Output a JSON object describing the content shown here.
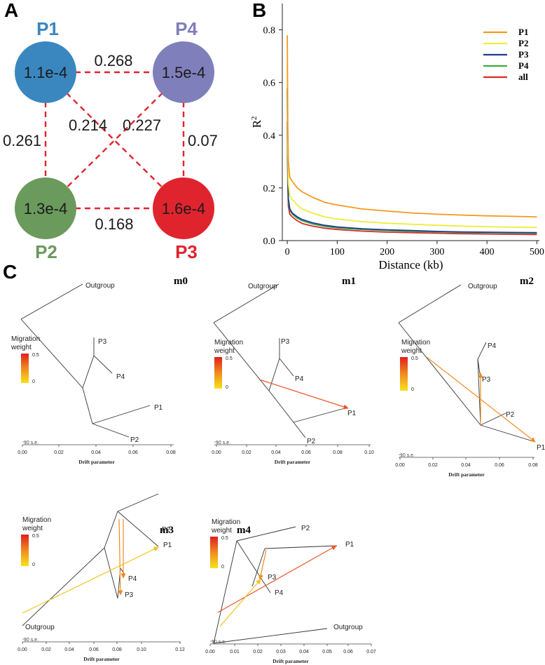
{
  "panels": {
    "a": "A",
    "b": "B",
    "c": "C"
  },
  "populations": [
    {
      "name": "P1",
      "value": "1.1e-4",
      "color": "#3a87c0"
    },
    {
      "name": "P4",
      "value": "1.5e-4",
      "color": "#7f7fbb"
    },
    {
      "name": "P2",
      "value": "1.3e-4",
      "color": "#6a9a5c"
    },
    {
      "name": "P3",
      "value": "1.6e-4",
      "color": "#e0242e"
    }
  ],
  "fst_edges": [
    {
      "from": "P1",
      "to": "P4",
      "label": "0.268"
    },
    {
      "from": "P1",
      "to": "P2",
      "label": "0.261"
    },
    {
      "from": "P1",
      "to": "P3",
      "label": "0.214"
    },
    {
      "from": "P4",
      "to": "P2",
      "label": "0.227"
    },
    {
      "from": "P4",
      "to": "P3",
      "label": "0.07"
    },
    {
      "from": "P2",
      "to": "P3",
      "label": "0.168"
    }
  ],
  "chart_data": [
    {
      "type": "line",
      "title": "",
      "xlabel": "Distance (kb)",
      "ylabel": "R",
      "ylabel_sup": "2",
      "xlim": [
        -10,
        505
      ],
      "ylim": [
        0,
        0.9
      ],
      "xticks": [
        "0",
        "100",
        "200",
        "300",
        "400",
        "500"
      ],
      "yticks": [
        "0.0",
        "0.2",
        "0.4",
        "0.6",
        "0.8"
      ],
      "legend_position": "top-right",
      "x": [
        0,
        1,
        2,
        5,
        10,
        20,
        30,
        50,
        75,
        100,
        150,
        200,
        250,
        300,
        350,
        400,
        450,
        500
      ],
      "series": [
        {
          "name": "P1",
          "color": "#f39a1e",
          "values": [
            0.78,
            0.45,
            0.3,
            0.24,
            0.225,
            0.2,
            0.185,
            0.165,
            0.145,
            0.135,
            0.12,
            0.112,
            0.105,
            0.1,
            0.097,
            0.094,
            0.092,
            0.09
          ]
        },
        {
          "name": "P2",
          "color": "#eded3c",
          "values": [
            0.67,
            0.35,
            0.22,
            0.17,
            0.155,
            0.135,
            0.12,
            0.105,
            0.09,
            0.082,
            0.072,
            0.066,
            0.062,
            0.058,
            0.055,
            0.053,
            0.051,
            0.05
          ]
        },
        {
          "name": "P3",
          "color": "#1f3d8f",
          "values": [
            0.58,
            0.28,
            0.16,
            0.12,
            0.105,
            0.09,
            0.08,
            0.068,
            0.058,
            0.052,
            0.045,
            0.041,
            0.038,
            0.035,
            0.033,
            0.032,
            0.031,
            0.03
          ]
        },
        {
          "name": "P4",
          "color": "#3cae3c",
          "values": [
            0.57,
            0.27,
            0.15,
            0.115,
            0.1,
            0.085,
            0.075,
            0.063,
            0.054,
            0.048,
            0.042,
            0.038,
            0.035,
            0.033,
            0.031,
            0.03,
            0.029,
            0.028
          ]
        },
        {
          "name": "all",
          "color": "#d92b2b",
          "values": [
            0.45,
            0.22,
            0.13,
            0.1,
            0.09,
            0.075,
            0.065,
            0.055,
            0.047,
            0.042,
            0.036,
            0.032,
            0.03,
            0.028,
            0.026,
            0.025,
            0.024,
            0.023
          ]
        }
      ]
    }
  ],
  "treemix": {
    "migration_label_1": "Migration",
    "migration_label_2": "weight",
    "scale_max": "0.5",
    "scale_min": "0",
    "se_label": "10 s.e.",
    "xlabel": "Drift parameter",
    "trees": [
      {
        "title": "m0",
        "ticks": [
          "0.00",
          "0.02",
          "0.04",
          "0.06",
          "0.08"
        ],
        "leaves": [
          "Outgroup",
          "P3",
          "P4",
          "P1",
          "P2"
        ]
      },
      {
        "title": "m1",
        "ticks": [
          "0.00",
          "0.02",
          "0.04",
          "0.06",
          "0.08",
          "0.10"
        ],
        "leaves": [
          "Outgroup",
          "P3",
          "P4",
          "P1",
          "P2"
        ]
      },
      {
        "title": "m2",
        "ticks": [
          "0.00",
          "0.02",
          "0.04",
          "0.06",
          "0.08"
        ],
        "leaves": [
          "Outgroup",
          "P4",
          "P3",
          "P2",
          "P1"
        ]
      },
      {
        "title": "m3",
        "ticks": [
          "0.00",
          "0.02",
          "0.04",
          "0.06",
          "0.08",
          "0.10",
          "0.12"
        ],
        "leaves": [
          "P2",
          "P1",
          "P4",
          "P3",
          "Outgroup"
        ]
      },
      {
        "title": "m4",
        "ticks": [
          "0.00",
          "0.01",
          "0.02",
          "0.03",
          "0.04",
          "0.05",
          "0.06",
          "0.07"
        ],
        "leaves": [
          "P2",
          "P1",
          "P3",
          "P4",
          "Outgroup"
        ]
      }
    ]
  }
}
